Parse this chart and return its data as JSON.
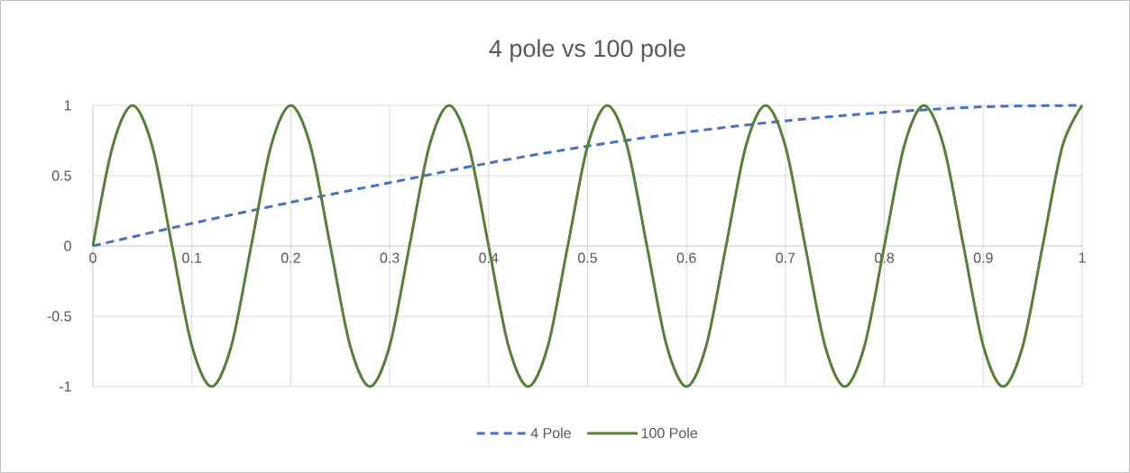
{
  "chart_data": {
    "type": "line",
    "title": "4 pole vs  100 pole",
    "x": [
      0,
      0.02,
      0.04,
      0.06,
      0.08,
      0.1,
      0.12,
      0.14,
      0.16,
      0.18,
      0.2,
      0.22,
      0.24,
      0.26,
      0.28,
      0.3,
      0.32,
      0.34,
      0.36,
      0.38,
      0.4,
      0.42,
      0.44,
      0.46,
      0.48,
      0.5,
      0.52,
      0.54,
      0.56,
      0.58,
      0.6,
      0.62,
      0.64,
      0.66,
      0.68,
      0.7,
      0.72,
      0.74,
      0.76,
      0.78,
      0.8,
      0.82,
      0.84,
      0.86,
      0.88,
      0.9,
      0.92,
      0.94,
      0.96,
      0.98,
      1
    ],
    "series": [
      {
        "name": "4 Pole",
        "color": "#4472c4",
        "line_style": "dashed",
        "x": [
          0,
          0.1,
          0.2,
          0.3,
          0.4,
          0.5,
          0.6,
          0.7,
          0.8,
          0.9,
          1
        ],
        "values": [
          0,
          0.16,
          0.31,
          0.45,
          0.59,
          0.71,
          0.81,
          0.89,
          0.95,
          0.99,
          1
        ]
      },
      {
        "name": "100 Pole",
        "color": "#548235",
        "line_style": "solid",
        "values": [
          0,
          0.71,
          1,
          0.71,
          0,
          -0.71,
          -1,
          -0.71,
          0,
          0.71,
          1,
          0.71,
          0,
          -0.71,
          -1,
          -0.71,
          0,
          0.71,
          1,
          0.71,
          0,
          -0.71,
          -1,
          -0.71,
          0,
          0.71,
          1,
          0.71,
          0,
          -0.71,
          -1,
          -0.71,
          0,
          0.71,
          1,
          0.71,
          0,
          -0.71,
          -1,
          -0.71,
          0,
          0.71,
          1,
          0.71,
          0,
          -0.71,
          -1,
          -0.71,
          0,
          0.71,
          1
        ]
      }
    ],
    "xlim": [
      0,
      1
    ],
    "ylim": [
      -1,
      1
    ],
    "xticks": [
      0,
      0.1,
      0.2,
      0.3,
      0.4,
      0.5,
      0.6,
      0.7,
      0.8,
      0.9,
      1
    ],
    "yticks": [
      -1,
      -0.5,
      0,
      0.5,
      1
    ],
    "grid": true,
    "legend": "bottom",
    "marker": "none"
  }
}
